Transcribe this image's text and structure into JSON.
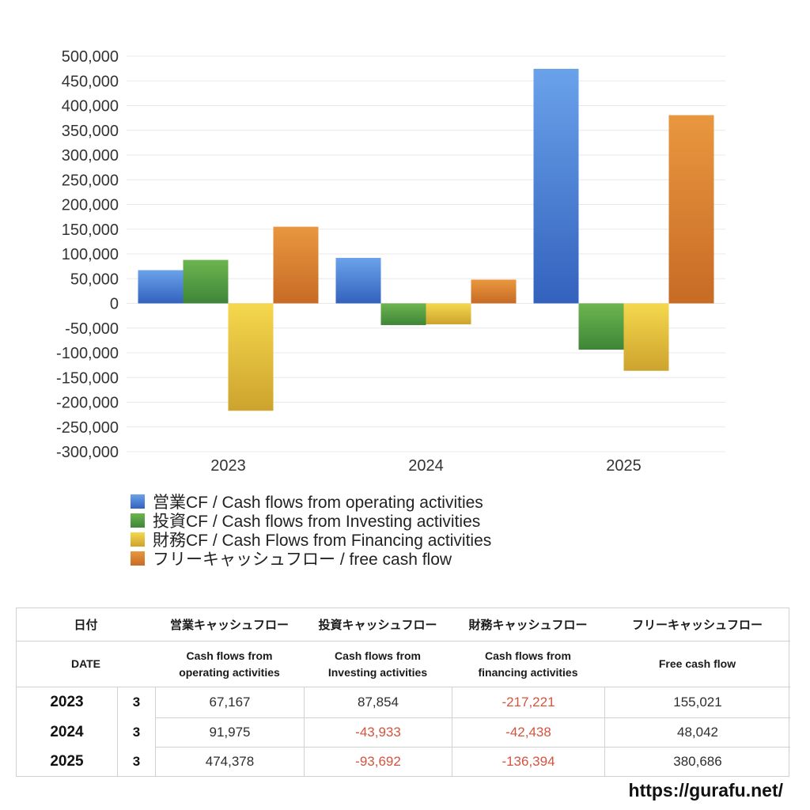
{
  "chart_data": {
    "type": "bar",
    "title": "",
    "categories": [
      "2023",
      "2024",
      "2025"
    ],
    "series": [
      {
        "name": "営業CF / Cash flows from operating activities",
        "color_top": "#6aa2ea",
        "color_bottom": "#3362bd",
        "values": [
          67167,
          91975,
          474378
        ]
      },
      {
        "name": "投資CF / Cash flows from Investing activities",
        "color_top": "#6db54f",
        "color_bottom": "#3e8638",
        "values": [
          87854,
          -43933,
          -93692
        ]
      },
      {
        "name": "財務CF / Cash Flows from Financing activities",
        "color_top": "#f5d84d",
        "color_bottom": "#cda32d",
        "values": [
          -217221,
          -42438,
          -136394
        ]
      },
      {
        "name": "フリーキャッシュフロー / free cash flow",
        "color_top": "#e9973f",
        "color_bottom": "#c76b25",
        "values": [
          155021,
          48042,
          380686
        ]
      }
    ],
    "xlabel": "",
    "ylabel": "",
    "ylim": [
      -300000,
      500000
    ],
    "ytick_step": 50000,
    "grid": true,
    "gridline_color": "#e8e8e8",
    "legend_position": "bottom"
  },
  "table": {
    "header_jp": {
      "date": "日付",
      "operating": "営業キャッシュフロー",
      "investing": "投資キャッシュフロー",
      "financing": "財務キャッシュフロー",
      "free": "フリーキャッシュフロー"
    },
    "header_en": {
      "date": [
        "DATE"
      ],
      "operating": [
        "Cash flows from",
        "operating activities"
      ],
      "investing": [
        "Cash flows from",
        "Investing activities"
      ],
      "financing": [
        "Cash flows from",
        "financing activities"
      ],
      "free": [
        "Free cash flow"
      ]
    },
    "rows": [
      {
        "year": "2023",
        "month": "3",
        "values": [
          "67,167",
          "87,854",
          "-217,221",
          "155,021"
        ]
      },
      {
        "year": "2024",
        "month": "3",
        "values": [
          "91,975",
          "-43,933",
          "-42,438",
          "48,042"
        ]
      },
      {
        "year": "2025",
        "month": "3",
        "values": [
          "474,378",
          "-93,692",
          "-136,394",
          "380,686"
        ]
      }
    ],
    "negative_color": "#d4543f"
  },
  "footer": {
    "url": "https://gurafu.net/"
  }
}
